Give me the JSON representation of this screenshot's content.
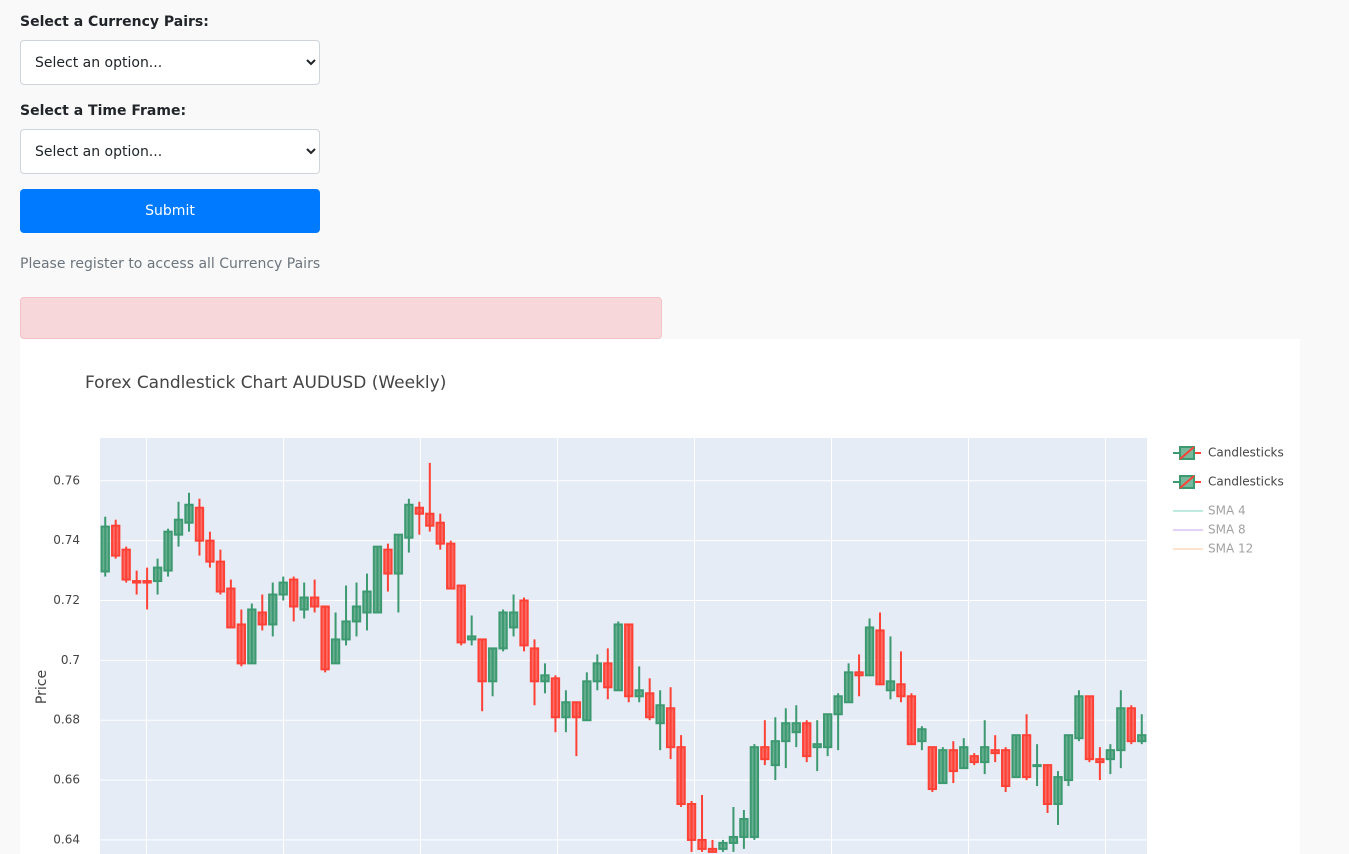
{
  "form": {
    "pair_label": "Select a Currency Pairs:",
    "pair_placeholder": "Select an option...",
    "timeframe_label": "Select a Time Frame:",
    "timeframe_placeholder": "Select an option...",
    "submit": "Submit",
    "note": "Please register to access all Currency Pairs"
  },
  "chart_data": {
    "type": "candlestick",
    "title": "Forex Candlestick Chart AUDUSD (Weekly)",
    "y_label": "Price",
    "categories": [
      null,
      null,
      null,
      null,
      null,
      null,
      null,
      null,
      null,
      null,
      null,
      null,
      null,
      null,
      null,
      null,
      null,
      null,
      null,
      null,
      null,
      null,
      null,
      null,
      null,
      null,
      null,
      null,
      null,
      null,
      null,
      null,
      null,
      null,
      null,
      null,
      null,
      null,
      null,
      null,
      null,
      null,
      null,
      null,
      null,
      null,
      null,
      null,
      null,
      null,
      null,
      null,
      null,
      null,
      null,
      null,
      null,
      null,
      null,
      null,
      null,
      null,
      null,
      null,
      null,
      null,
      null,
      null,
      null,
      null,
      null,
      null,
      null,
      null,
      null,
      null,
      null,
      null,
      null,
      null,
      null,
      null,
      null,
      null,
      null,
      null,
      null,
      null,
      null,
      null,
      null,
      null,
      null,
      null,
      null,
      null,
      null,
      null,
      null,
      null
    ],
    "ylim": [
      0.6353,
      0.7743
    ],
    "yticks": [
      0.64,
      0.66,
      0.68,
      0.7,
      0.72,
      0.74,
      0.76
    ],
    "grid": true,
    "increasing_color": "#3d9970",
    "decreasing_color": "#ff4136",
    "plot_background": "#e5ecf6",
    "series": [
      {
        "name": "Candlesticks",
        "type": "candlestick",
        "open": [
          0.7297,
          0.745,
          0.737,
          0.7265,
          0.7265,
          0.7265,
          0.73,
          0.742,
          0.746,
          0.751,
          0.74,
          0.733,
          0.724,
          0.712,
          0.699,
          0.716,
          0.712,
          0.722,
          0.727,
          0.717,
          0.721,
          0.718,
          0.699,
          0.707,
          0.713,
          0.716,
          0.716,
          0.737,
          0.729,
          0.741,
          0.751,
          0.749,
          0.746,
          0.739,
          0.725,
          0.707,
          0.707,
          0.693,
          0.704,
          0.711,
          0.72,
          0.704,
          0.693,
          0.694,
          0.681,
          0.686,
          0.68,
          0.693,
          0.699,
          0.69,
          0.712,
          0.688,
          0.689,
          0.679,
          0.684,
          0.671,
          0.652,
          0.64,
          0.637,
          0.637,
          0.639,
          0.641,
          0.641,
          0.671,
          0.665,
          0.673,
          0.676,
          0.679,
          0.671,
          0.671,
          0.682,
          0.686,
          0.696,
          0.695,
          0.71,
          0.69,
          0.692,
          0.688,
          0.673,
          0.671,
          0.659,
          0.67,
          0.664,
          0.668,
          0.666,
          0.67,
          0.67,
          0.661,
          0.675,
          0.665,
          0.665,
          0.652,
          0.66,
          0.674,
          0.688,
          0.667,
          0.667,
          0.67,
          0.684,
          0.673
        ],
        "high": [
          0.748,
          0.747,
          0.738,
          0.73,
          0.731,
          0.734,
          0.744,
          0.753,
          0.756,
          0.754,
          0.743,
          0.737,
          0.727,
          0.717,
          0.719,
          0.722,
          0.726,
          0.728,
          0.728,
          0.726,
          0.727,
          0.718,
          0.716,
          0.725,
          0.726,
          0.729,
          0.738,
          0.739,
          0.742,
          0.754,
          0.753,
          0.766,
          0.749,
          0.74,
          0.725,
          0.715,
          0.707,
          0.704,
          0.717,
          0.722,
          0.721,
          0.707,
          0.699,
          0.695,
          0.69,
          0.686,
          0.696,
          0.702,
          0.704,
          0.713,
          0.712,
          0.698,
          0.694,
          0.69,
          0.691,
          0.675,
          0.653,
          0.655,
          0.64,
          0.64,
          0.651,
          0.65,
          0.672,
          0.68,
          0.681,
          0.684,
          0.685,
          0.68,
          0.68,
          0.682,
          0.689,
          0.699,
          0.702,
          0.714,
          0.716,
          0.708,
          0.703,
          0.689,
          0.678,
          0.671,
          0.671,
          0.673,
          0.674,
          0.669,
          0.68,
          0.675,
          0.671,
          0.675,
          0.682,
          0.672,
          0.665,
          0.663,
          0.675,
          0.69,
          0.688,
          0.671,
          0.672,
          0.69,
          0.685,
          0.682
        ],
        "low": [
          0.728,
          0.734,
          0.726,
          0.722,
          0.717,
          0.722,
          0.728,
          0.738,
          0.743,
          0.735,
          0.731,
          0.722,
          0.711,
          0.698,
          0.699,
          0.71,
          0.708,
          0.72,
          0.713,
          0.714,
          0.716,
          0.696,
          0.699,
          0.705,
          0.708,
          0.71,
          0.716,
          0.723,
          0.716,
          0.736,
          0.742,
          0.743,
          0.737,
          0.724,
          0.705,
          0.705,
          0.683,
          0.688,
          0.703,
          0.708,
          0.703,
          0.685,
          0.689,
          0.676,
          0.676,
          0.668,
          0.68,
          0.69,
          0.687,
          0.69,
          0.686,
          0.686,
          0.68,
          0.67,
          0.667,
          0.651,
          0.636,
          0.636,
          0.636,
          0.636,
          0.636,
          0.637,
          0.64,
          0.665,
          0.66,
          0.664,
          0.671,
          0.666,
          0.663,
          0.668,
          0.67,
          0.686,
          0.688,
          0.695,
          0.692,
          0.687,
          0.686,
          0.672,
          0.67,
          0.656,
          0.659,
          0.659,
          0.664,
          0.665,
          0.662,
          0.666,
          0.656,
          0.661,
          0.66,
          0.658,
          0.649,
          0.645,
          0.658,
          0.673,
          0.666,
          0.66,
          0.662,
          0.664,
          0.672,
          0.672
        ],
        "close": [
          0.7447,
          0.735,
          0.727,
          0.726,
          0.726,
          0.731,
          0.743,
          0.747,
          0.752,
          0.74,
          0.733,
          0.723,
          0.711,
          0.699,
          0.717,
          0.712,
          0.722,
          0.726,
          0.718,
          0.721,
          0.718,
          0.697,
          0.707,
          0.713,
          0.718,
          0.723,
          0.738,
          0.729,
          0.742,
          0.752,
          0.749,
          0.745,
          0.739,
          0.724,
          0.706,
          0.708,
          0.693,
          0.704,
          0.716,
          0.716,
          0.705,
          0.693,
          0.695,
          0.681,
          0.686,
          0.681,
          0.693,
          0.699,
          0.691,
          0.712,
          0.688,
          0.69,
          0.681,
          0.685,
          0.671,
          0.652,
          0.64,
          0.637,
          0.636,
          0.639,
          0.641,
          0.647,
          0.671,
          0.667,
          0.673,
          0.679,
          0.679,
          0.668,
          0.672,
          0.682,
          0.688,
          0.696,
          0.695,
          0.711,
          0.692,
          0.693,
          0.688,
          0.672,
          0.677,
          0.657,
          0.67,
          0.663,
          0.671,
          0.666,
          0.671,
          0.669,
          0.658,
          0.675,
          0.661,
          0.665,
          0.652,
          0.661,
          0.675,
          0.688,
          0.667,
          0.666,
          0.67,
          0.684,
          0.673,
          0.675
        ]
      },
      {
        "name": "Candlesticks",
        "type": "candlestick"
      },
      {
        "name": "SMA 4",
        "type": "line",
        "color": "#7fd8c0",
        "visible": "legendonly"
      },
      {
        "name": "SMA 8",
        "type": "line",
        "color": "#c6a6f2",
        "visible": "legendonly"
      },
      {
        "name": "SMA 12",
        "type": "line",
        "color": "#ffc89a",
        "visible": "legendonly"
      }
    ]
  }
}
